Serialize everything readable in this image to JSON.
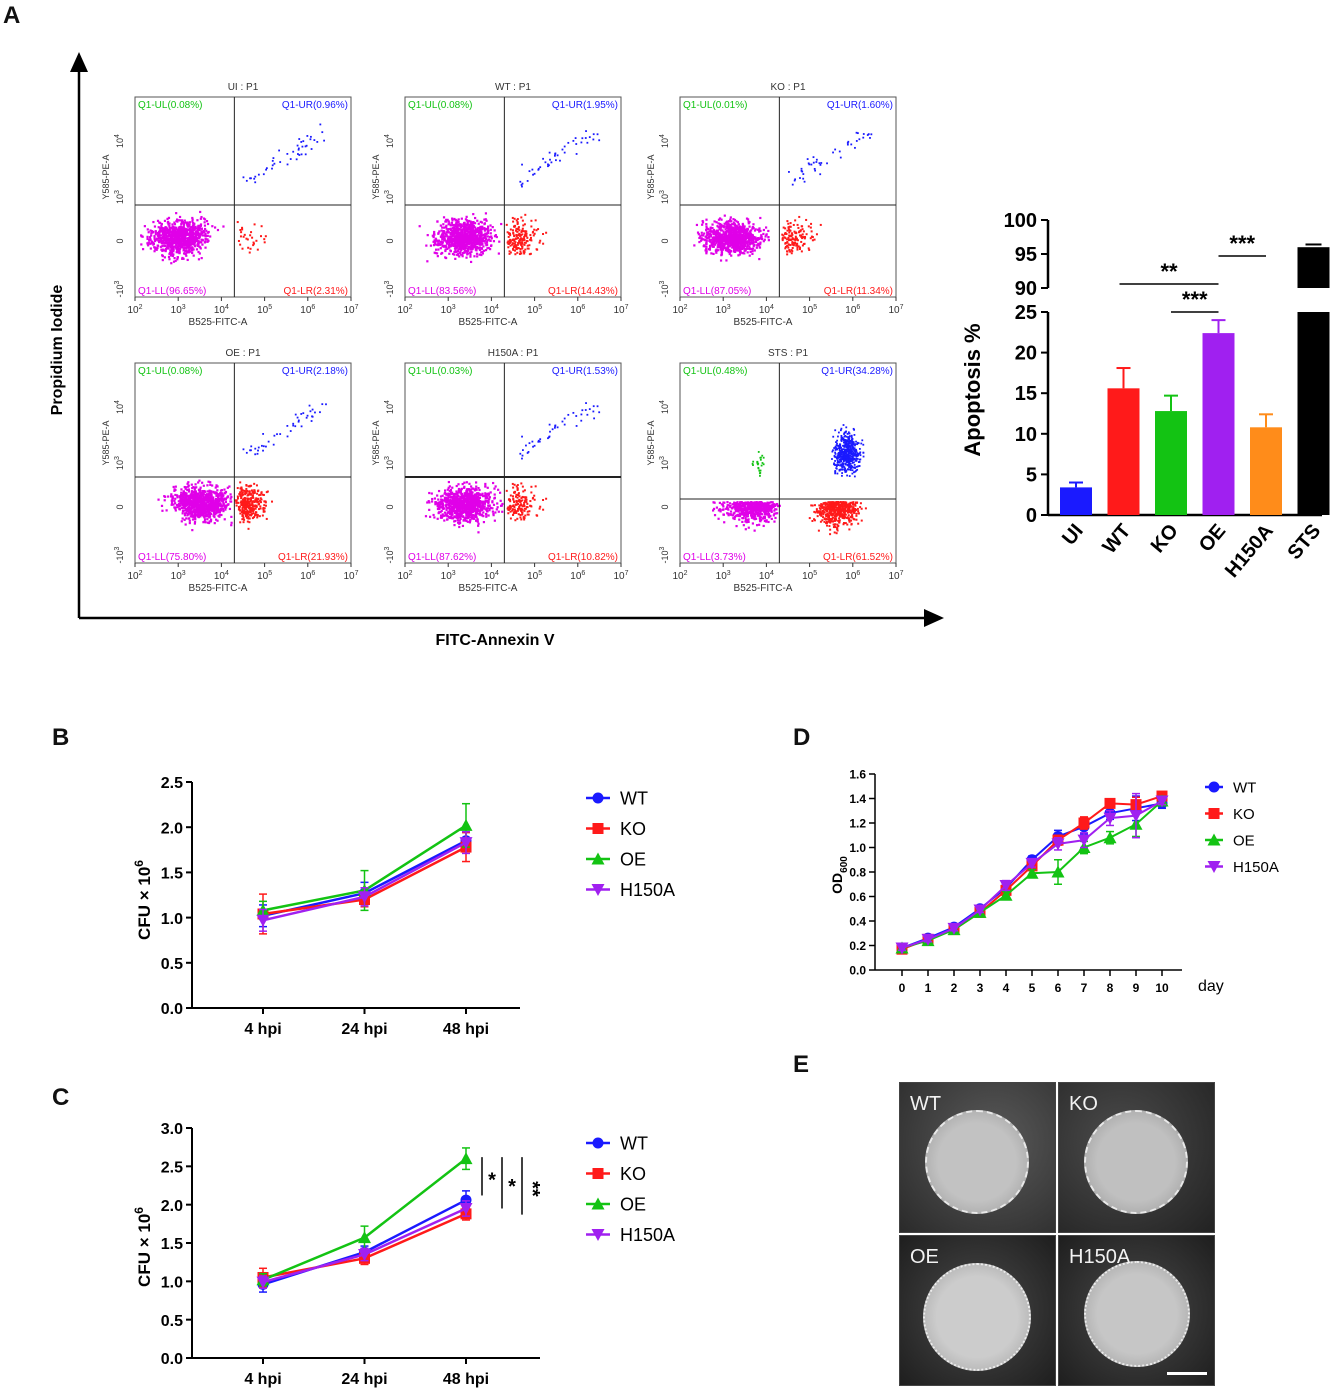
{
  "panels": {
    "a": "A",
    "b": "B",
    "c": "C",
    "d": "D",
    "e": "E"
  },
  "flow": {
    "y_label": "Propidium Iodide",
    "x_label": "FITC-Annexin V",
    "plot_x_label": "B525-FITC-A",
    "plot_y_label": "Y585-PE-A",
    "plots": [
      {
        "title": "UI : P1",
        "UL": "Q1-UL(0.08%)",
        "UR": "Q1-UR(0.96%)",
        "LL": "Q1-LL(96.65%)",
        "LR": "Q1-LR(2.31%)"
      },
      {
        "title": "WT : P1",
        "UL": "Q1-UL(0.08%)",
        "UR": "Q1-UR(1.95%)",
        "LL": "Q1-LL(83.56%)",
        "LR": "Q1-LR(14.43%)"
      },
      {
        "title": "KO : P1",
        "UL": "Q1-UL(0.01%)",
        "UR": "Q1-UR(1.60%)",
        "LL": "Q1-LL(87.05%)",
        "LR": "Q1-LR(11.34%)"
      },
      {
        "title": "OE : P1",
        "UL": "Q1-UL(0.08%)",
        "UR": "Q1-UR(2.18%)",
        "LL": "Q1-LL(75.80%)",
        "LR": "Q1-LR(21.93%)"
      },
      {
        "title": "H150A : P1",
        "UL": "Q1-UL(0.03%)",
        "UR": "Q1-UR(1.53%)",
        "LL": "Q1-LL(87.62%)",
        "LR": "Q1-LR(10.82%)"
      },
      {
        "title": "STS : P1",
        "UL": "Q1-UL(0.48%)",
        "UR": "Q1-UR(34.28%)",
        "LL": "Q1-LL(3.73%)",
        "LR": "Q1-LR(61.52%)"
      }
    ]
  },
  "colors": {
    "blue": "#1a1aff",
    "red": "#ff1a1a",
    "green": "#13c313",
    "purple": "#a020f0",
    "orange": "#ff8c1a",
    "black": "#000000",
    "magenta": "#e000e8"
  },
  "chart_data": [
    {
      "id": "A-bar",
      "type": "bar",
      "ylabel": "Apoptosis %",
      "categories": [
        "UI",
        "WT",
        "KO",
        "OE",
        "H150A",
        "STS"
      ],
      "values": [
        3.4,
        15.6,
        12.8,
        22.4,
        10.8,
        96.0
      ],
      "errors": [
        0.6,
        2.5,
        1.9,
        1.6,
        1.6,
        0.4
      ],
      "colors": [
        "#1a1aff",
        "#ff1a1a",
        "#13c313",
        "#a020f0",
        "#ff8c1a",
        "#000000"
      ],
      "y_broken": {
        "lower": [
          0,
          25
        ],
        "upper": [
          90,
          100
        ]
      },
      "lower_ticks": [
        "0",
        "5",
        "10",
        "15",
        "20",
        "25"
      ],
      "upper_ticks": [
        "90",
        "95",
        "100"
      ],
      "significance": [
        {
          "label": "**",
          "from": "WT",
          "to": "OE"
        },
        {
          "label": "***",
          "from": "KO",
          "to": "OE"
        },
        {
          "label": "***",
          "from": "OE",
          "to": "H150A"
        }
      ]
    },
    {
      "id": "B",
      "type": "line",
      "x": [
        "4 hpi",
        "24 hpi",
        "48 hpi"
      ],
      "ylabel_main": "CFU × 10",
      "ylabel_sup": "6",
      "ylim": [
        0,
        2.5
      ],
      "yticks": [
        "0.0",
        "0.5",
        "1.0",
        "1.5",
        "2.0",
        "2.5"
      ],
      "series": [
        {
          "name": "WT",
          "values": [
            1.02,
            1.27,
            1.85
          ],
          "errors": [
            0.12,
            0.12,
            0.1
          ],
          "color": "#1a1aff",
          "marker": "circle"
        },
        {
          "name": "KO",
          "values": [
            1.04,
            1.2,
            1.78
          ],
          "errors": [
            0.22,
            0.08,
            0.16
          ],
          "color": "#ff1a1a",
          "marker": "square"
        },
        {
          "name": "OE",
          "values": [
            1.08,
            1.3,
            2.02
          ],
          "errors": [
            0.1,
            0.22,
            0.24
          ],
          "color": "#13c313",
          "marker": "triangle-up"
        },
        {
          "name": "H150A",
          "values": [
            0.97,
            1.23,
            1.83
          ],
          "errors": [
            0.12,
            0.1,
            0.12
          ],
          "color": "#a020f0",
          "marker": "triangle-down"
        }
      ]
    },
    {
      "id": "C",
      "type": "line",
      "x": [
        "4 hpi",
        "24 hpi",
        "48 hpi"
      ],
      "ylabel_main": "CFU × 10",
      "ylabel_sup": "6",
      "ylim": [
        0,
        3.0
      ],
      "yticks": [
        "0.0",
        "0.5",
        "1.0",
        "1.5",
        "2.0",
        "2.5",
        "3.0"
      ],
      "series": [
        {
          "name": "WT",
          "values": [
            0.96,
            1.38,
            2.06
          ],
          "errors": [
            0.1,
            0.08,
            0.12
          ],
          "color": "#1a1aff",
          "marker": "circle"
        },
        {
          "name": "KO",
          "values": [
            1.05,
            1.3,
            1.88
          ],
          "errors": [
            0.12,
            0.08,
            0.08
          ],
          "color": "#ff1a1a",
          "marker": "square"
        },
        {
          "name": "OE",
          "values": [
            1.02,
            1.57,
            2.6
          ],
          "errors": [
            0.08,
            0.15,
            0.14
          ],
          "color": "#13c313",
          "marker": "triangle-up"
        },
        {
          "name": "H150A",
          "values": [
            0.99,
            1.35,
            1.95
          ],
          "errors": [
            0.08,
            0.08,
            0.1
          ],
          "color": "#a020f0",
          "marker": "triangle-down"
        }
      ],
      "significance": [
        "*",
        "*",
        "**"
      ]
    },
    {
      "id": "D",
      "type": "line",
      "x": [
        0,
        1,
        2,
        3,
        4,
        5,
        6,
        7,
        8,
        9,
        10
      ],
      "x_ticks": [
        "0",
        "1",
        "2",
        "3",
        "4",
        "5",
        "6",
        "7",
        "8",
        "9",
        "10"
      ],
      "xlabel": "day",
      "ylabel_main": "OD",
      "ylabel_sub": "600",
      "ylim": [
        0,
        1.6
      ],
      "yticks": [
        "0.0",
        "0.2",
        "0.4",
        "0.6",
        "0.8",
        "1.0",
        "1.2",
        "1.4",
        "1.6"
      ],
      "series": [
        {
          "name": "WT",
          "values": [
            0.18,
            0.26,
            0.35,
            0.5,
            0.67,
            0.9,
            1.09,
            1.17,
            1.28,
            1.32,
            1.36
          ],
          "errors": [
            0.02,
            0.02,
            0.02,
            0.02,
            0.03,
            0.03,
            0.05,
            0.06,
            0.05,
            0.1,
            0.04
          ],
          "color": "#1a1aff",
          "marker": "circle"
        },
        {
          "name": "KO",
          "values": [
            0.17,
            0.25,
            0.33,
            0.47,
            0.65,
            0.85,
            1.06,
            1.2,
            1.36,
            1.35,
            1.42
          ],
          "errors": [
            0.02,
            0.02,
            0.02,
            0.02,
            0.03,
            0.03,
            0.04,
            0.05,
            0.03,
            0.06,
            0.03
          ],
          "color": "#ff1a1a",
          "marker": "square"
        },
        {
          "name": "OE",
          "values": [
            0.18,
            0.24,
            0.33,
            0.47,
            0.61,
            0.79,
            0.8,
            1.0,
            1.08,
            1.19,
            1.38
          ],
          "errors": [
            0.02,
            0.02,
            0.02,
            0.02,
            0.03,
            0.03,
            0.1,
            0.05,
            0.05,
            0.1,
            0.04
          ],
          "color": "#13c313",
          "marker": "triangle-up"
        },
        {
          "name": "H150A",
          "values": [
            0.18,
            0.25,
            0.34,
            0.49,
            0.69,
            0.87,
            1.03,
            1.06,
            1.24,
            1.26,
            1.38
          ],
          "errors": [
            0.02,
            0.02,
            0.02,
            0.02,
            0.04,
            0.03,
            0.05,
            0.06,
            0.06,
            0.18,
            0.03
          ],
          "color": "#a020f0",
          "marker": "triangle-down"
        }
      ]
    }
  ],
  "photos": {
    "labels": [
      "WT",
      "KO",
      "OE",
      "H150A"
    ]
  }
}
